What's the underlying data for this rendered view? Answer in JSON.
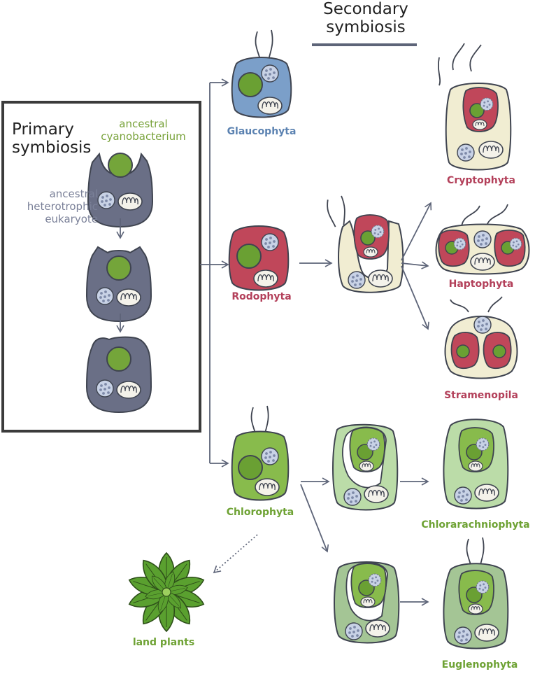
{
  "secondary": {
    "line1": "Secondary",
    "line2": "symbiosis"
  },
  "primary": {
    "line1": "Primary",
    "line2": "symbiosis"
  },
  "cyanobacterium": {
    "line1": "ancestral",
    "line2": "cyanobacterium"
  },
  "host": {
    "line1": "ancestral",
    "line2": "heterotrophic",
    "line3": "eukaryote"
  },
  "taxa": {
    "glaucophyta": "Glaucophyta",
    "rodophyta": "Rodophyta",
    "chlorophyta": "Chlorophyta",
    "cryptophyta": "Cryptophyta",
    "haptophyta": "Haptophyta",
    "stramenopila": "Stramenopila",
    "chlorarachniophyta": "Chlorarachniophyta",
    "euglenophyta": "Euglenophyta",
    "land_plants": "land plants"
  },
  "colors": {
    "host": "#6a6f86",
    "cyano": "#74a53a",
    "glauco": "#7b9fc9",
    "red": "#c0475a",
    "green": "#88bb4c",
    "cream": "#f1edd2",
    "light_green": "#bbdca8",
    "sage": "#a4c595",
    "arrow": "#5d6478",
    "label_blue": "#5b82b1",
    "label_red": "#b3405a",
    "label_green": "#6ea234"
  }
}
